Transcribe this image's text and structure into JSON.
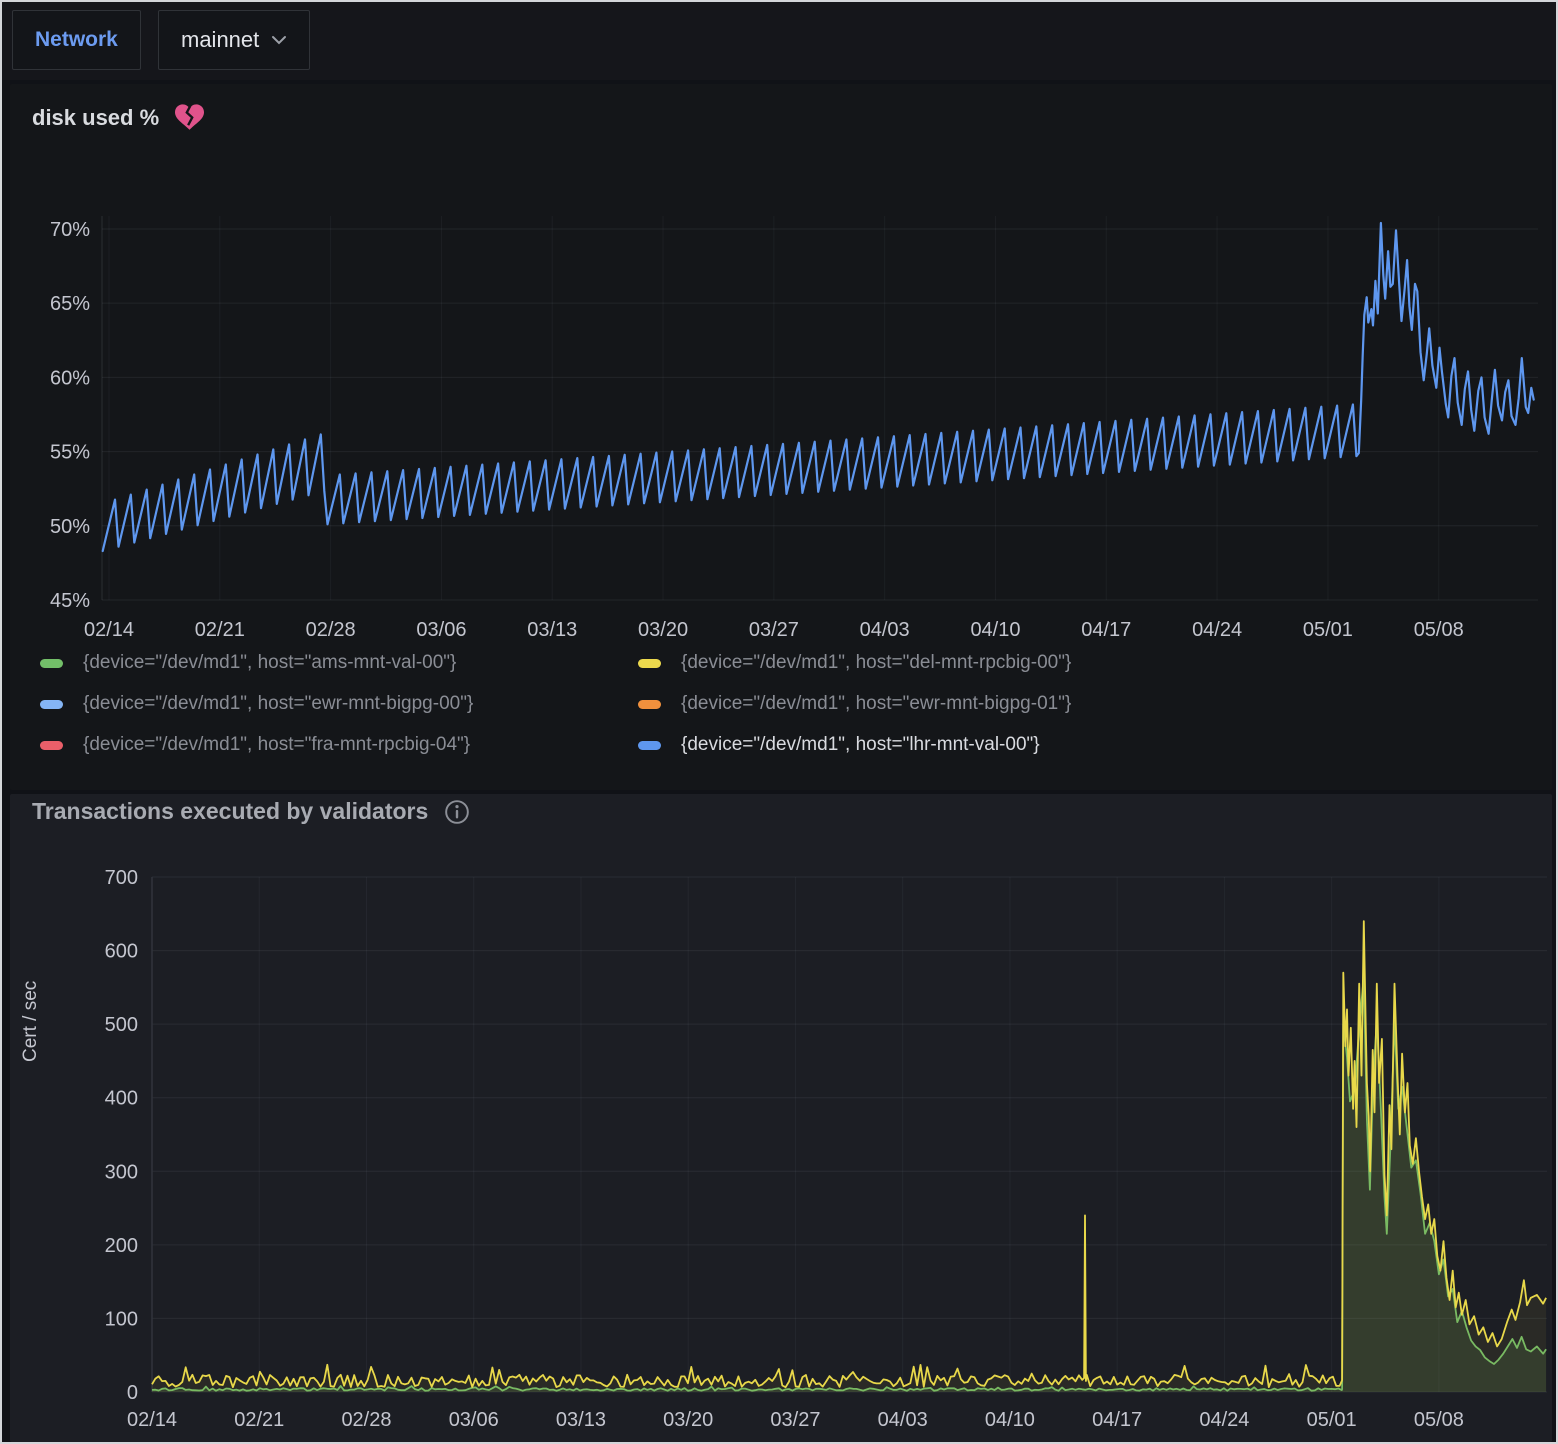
{
  "topbar": {
    "network_label": "Network",
    "network_value": "mainnet"
  },
  "disk_panel": {
    "alert_icon": "broken-heart-icon",
    "alert_color": "#e0538b"
  },
  "chart_data": [
    {
      "type": "line",
      "title": "disk used %",
      "unit": "%",
      "legend_position": "bottom",
      "grid": true,
      "x_tick_labels": [
        "02/14",
        "02/21",
        "02/28",
        "03/06",
        "03/13",
        "03/20",
        "03/27",
        "04/03",
        "04/10",
        "04/17",
        "04/24",
        "05/01",
        "05/08"
      ],
      "x_tick_days": [
        0,
        7,
        14,
        21,
        28,
        35,
        42,
        49,
        56,
        63,
        70,
        77,
        84
      ],
      "x_range_days": [
        -0.4,
        90
      ],
      "y_ticks": [
        45,
        50,
        55,
        60,
        65,
        70
      ],
      "ylim": [
        44.5,
        72
      ],
      "line_color": "#5e97ef",
      "pattern": "daily sawtooth, gradual rise then sharp daily drop",
      "sawtooth_envelope_segments": [
        {
          "from": -0.4,
          "to": 13.8,
          "trough": [
            48.3,
            52.4
          ],
          "peak": [
            51.5,
            56.3
          ]
        },
        {
          "from": 13.8,
          "to": 78.95,
          "trough": [
            50.1,
            54.7
          ],
          "peak": [
            53.4,
            58.2
          ]
        }
      ],
      "tooth_rise_fraction": 0.78,
      "peak_event_points": [
        [
          78.95,
          54.9
        ],
        [
          79.1,
          58.5
        ],
        [
          79.2,
          61.5
        ],
        [
          79.3,
          64.2
        ],
        [
          79.45,
          65.4
        ],
        [
          79.55,
          63.7
        ],
        [
          79.75,
          64.6
        ],
        [
          79.85,
          63.5
        ],
        [
          80.0,
          66.5
        ],
        [
          80.15,
          64.3
        ],
        [
          80.35,
          70.4
        ],
        [
          80.5,
          66.9
        ],
        [
          80.62,
          65.3
        ],
        [
          80.8,
          68.5
        ],
        [
          80.95,
          66.1
        ],
        [
          81.1,
          66.3
        ],
        [
          81.3,
          69.9
        ],
        [
          81.5,
          66.4
        ],
        [
          81.65,
          63.8
        ],
        [
          81.85,
          66.0
        ],
        [
          82.0,
          67.9
        ],
        [
          82.15,
          64.8
        ],
        [
          82.3,
          63.2
        ],
        [
          82.5,
          66.3
        ],
        [
          82.65,
          65.8
        ],
        [
          82.85,
          61.7
        ],
        [
          83.05,
          59.8
        ],
        [
          83.25,
          61.6
        ],
        [
          83.4,
          63.3
        ],
        [
          83.6,
          60.8
        ],
        [
          83.85,
          59.3
        ],
        [
          84.05,
          62.0
        ],
        [
          84.2,
          60.4
        ],
        [
          84.45,
          58.2
        ],
        [
          84.6,
          57.3
        ],
        [
          84.8,
          60.1
        ],
        [
          85.0,
          61.3
        ],
        [
          85.2,
          58.3
        ],
        [
          85.45,
          56.8
        ],
        [
          85.65,
          59.2
        ],
        [
          85.85,
          60.4
        ],
        [
          86.05,
          57.8
        ],
        [
          86.25,
          56.4
        ],
        [
          86.5,
          59.1
        ],
        [
          86.7,
          60.0
        ],
        [
          86.9,
          57.3
        ],
        [
          87.15,
          56.2
        ],
        [
          87.35,
          58.5
        ],
        [
          87.55,
          60.5
        ],
        [
          87.75,
          58.1
        ],
        [
          88.0,
          57.1
        ],
        [
          88.2,
          59.0
        ],
        [
          88.4,
          59.8
        ],
        [
          88.6,
          57.4
        ],
        [
          88.85,
          56.8
        ],
        [
          89.05,
          58.6
        ],
        [
          89.25,
          61.3
        ],
        [
          89.5,
          58.0
        ],
        [
          89.65,
          57.6
        ],
        [
          89.85,
          59.3
        ],
        [
          90.0,
          58.5
        ]
      ],
      "legend": [
        {
          "label": "{device=\"/dev/md1\", host=\"ams-mnt-val-00\"}",
          "color": "#73bf69",
          "dim": true
        },
        {
          "label": "{device=\"/dev/md1\", host=\"del-mnt-rpcbig-00\"}",
          "color": "#ecd94d",
          "dim": true
        },
        {
          "label": "{device=\"/dev/md1\", host=\"ewr-mnt-bigpg-00\"}",
          "color": "#85b5f5",
          "dim": true
        },
        {
          "label": "{device=\"/dev/md1\", host=\"ewr-mnt-bigpg-01\"}",
          "color": "#f0903d",
          "dim": true
        },
        {
          "label": "{device=\"/dev/md1\", host=\"fra-mnt-rpcbig-04\"}",
          "color": "#ea5f69",
          "dim": true
        },
        {
          "label": "{device=\"/dev/md1\", host=\"lhr-mnt-val-00\"}",
          "color": "#5e97ef",
          "dim": false
        }
      ]
    },
    {
      "type": "line",
      "title": "Transactions executed by validators",
      "ylabel": "Cert / sec",
      "grid": true,
      "x_tick_labels": [
        "02/14",
        "02/21",
        "02/28",
        "03/06",
        "03/13",
        "03/20",
        "03/27",
        "04/03",
        "04/10",
        "04/17",
        "04/24",
        "05/01",
        "05/08"
      ],
      "x_tick_days": [
        0,
        7,
        14,
        21,
        28,
        35,
        42,
        49,
        56,
        63,
        70,
        77,
        84
      ],
      "x_range_days": [
        0,
        91
      ],
      "y_ticks": [
        0,
        100,
        200,
        300,
        400,
        500,
        600,
        700
      ],
      "ylim": [
        0,
        700
      ],
      "series": [
        {
          "name": "green-series",
          "color": "#71b865",
          "fill_opacity": 0.13,
          "baseline": {
            "from": 0,
            "to": 77.68,
            "mean": 3.5,
            "noise": 1.8
          },
          "burst_points": [
            [
              77.68,
              4
            ],
            [
              77.72,
              260
            ],
            [
              77.76,
              500
            ],
            [
              78.0,
              455
            ],
            [
              78.2,
              395
            ],
            [
              78.5,
              410
            ],
            [
              78.8,
              495
            ],
            [
              79.1,
              565
            ],
            [
              79.3,
              370
            ],
            [
              79.5,
              275
            ],
            [
              79.7,
              420
            ],
            [
              79.95,
              505
            ],
            [
              80.2,
              390
            ],
            [
              80.45,
              265
            ],
            [
              80.6,
              215
            ],
            [
              80.85,
              340
            ],
            [
              81.1,
              505
            ],
            [
              81.35,
              385
            ],
            [
              81.6,
              415
            ],
            [
              81.9,
              360
            ],
            [
              82.2,
              305
            ],
            [
              82.5,
              315
            ],
            [
              82.8,
              270
            ],
            [
              83.1,
              215
            ],
            [
              83.4,
              230
            ],
            [
              83.7,
              205
            ],
            [
              84.0,
              160
            ],
            [
              84.3,
              180
            ],
            [
              84.6,
              130
            ],
            [
              84.9,
              140
            ],
            [
              85.2,
              95
            ],
            [
              85.5,
              110
            ],
            [
              85.8,
              88
            ],
            [
              86.1,
              70
            ],
            [
              86.4,
              62
            ],
            [
              86.7,
              57
            ],
            [
              87.0,
              47
            ],
            [
              87.3,
              42
            ],
            [
              87.6,
              38
            ],
            [
              87.9,
              44
            ],
            [
              88.2,
              52
            ],
            [
              88.5,
              62
            ],
            [
              88.8,
              72
            ],
            [
              89.1,
              60
            ],
            [
              89.4,
              75
            ],
            [
              89.7,
              58
            ],
            [
              90.0,
              55
            ],
            [
              90.4,
              62
            ],
            [
              90.8,
              52
            ],
            [
              91.0,
              58
            ]
          ]
        },
        {
          "name": "yellow-series",
          "color": "#e8d84a",
          "fill_opacity": 0.07,
          "baseline": {
            "from": 0,
            "to": 77.68,
            "mean": 15,
            "noise": 8.5
          },
          "spike": {
            "day": 60.9,
            "value": 240
          },
          "burst_points": [
            [
              77.68,
              16
            ],
            [
              77.72,
              300
            ],
            [
              77.76,
              570
            ],
            [
              77.9,
              470
            ],
            [
              78.0,
              520
            ],
            [
              78.1,
              430
            ],
            [
              78.25,
              495
            ],
            [
              78.4,
              385
            ],
            [
              78.5,
              450
            ],
            [
              78.62,
              360
            ],
            [
              78.8,
              555
            ],
            [
              78.95,
              430
            ],
            [
              79.1,
              640
            ],
            [
              79.22,
              500
            ],
            [
              79.3,
              420
            ],
            [
              79.42,
              375
            ],
            [
              79.52,
              300
            ],
            [
              79.68,
              465
            ],
            [
              79.8,
              380
            ],
            [
              79.95,
              555
            ],
            [
              80.1,
              420
            ],
            [
              80.28,
              480
            ],
            [
              80.45,
              295
            ],
            [
              80.6,
              240
            ],
            [
              80.78,
              390
            ],
            [
              80.9,
              330
            ],
            [
              81.1,
              555
            ],
            [
              81.3,
              430
            ],
            [
              81.45,
              350
            ],
            [
              81.6,
              460
            ],
            [
              81.78,
              380
            ],
            [
              81.95,
              420
            ],
            [
              82.1,
              335
            ],
            [
              82.3,
              310
            ],
            [
              82.5,
              345
            ],
            [
              82.7,
              300
            ],
            [
              82.9,
              265
            ],
            [
              83.1,
              235
            ],
            [
              83.3,
              255
            ],
            [
              83.5,
              215
            ],
            [
              83.7,
              235
            ],
            [
              83.9,
              185
            ],
            [
              84.1,
              165
            ],
            [
              84.3,
              205
            ],
            [
              84.5,
              155
            ],
            [
              84.7,
              125
            ],
            [
              84.9,
              165
            ],
            [
              85.1,
              115
            ],
            [
              85.3,
              135
            ],
            [
              85.5,
              105
            ],
            [
              85.75,
              125
            ],
            [
              86.0,
              92
            ],
            [
              86.3,
              103
            ],
            [
              86.6,
              78
            ],
            [
              86.9,
              88
            ],
            [
              87.2,
              68
            ],
            [
              87.5,
              80
            ],
            [
              87.8,
              62
            ],
            [
              88.1,
              72
            ],
            [
              88.45,
              95
            ],
            [
              88.75,
              112
            ],
            [
              89.0,
              98
            ],
            [
              89.3,
              122
            ],
            [
              89.55,
              152
            ],
            [
              89.75,
              118
            ],
            [
              90.0,
              128
            ],
            [
              90.4,
              132
            ],
            [
              90.8,
              120
            ],
            [
              91.0,
              128
            ]
          ]
        }
      ]
    }
  ]
}
